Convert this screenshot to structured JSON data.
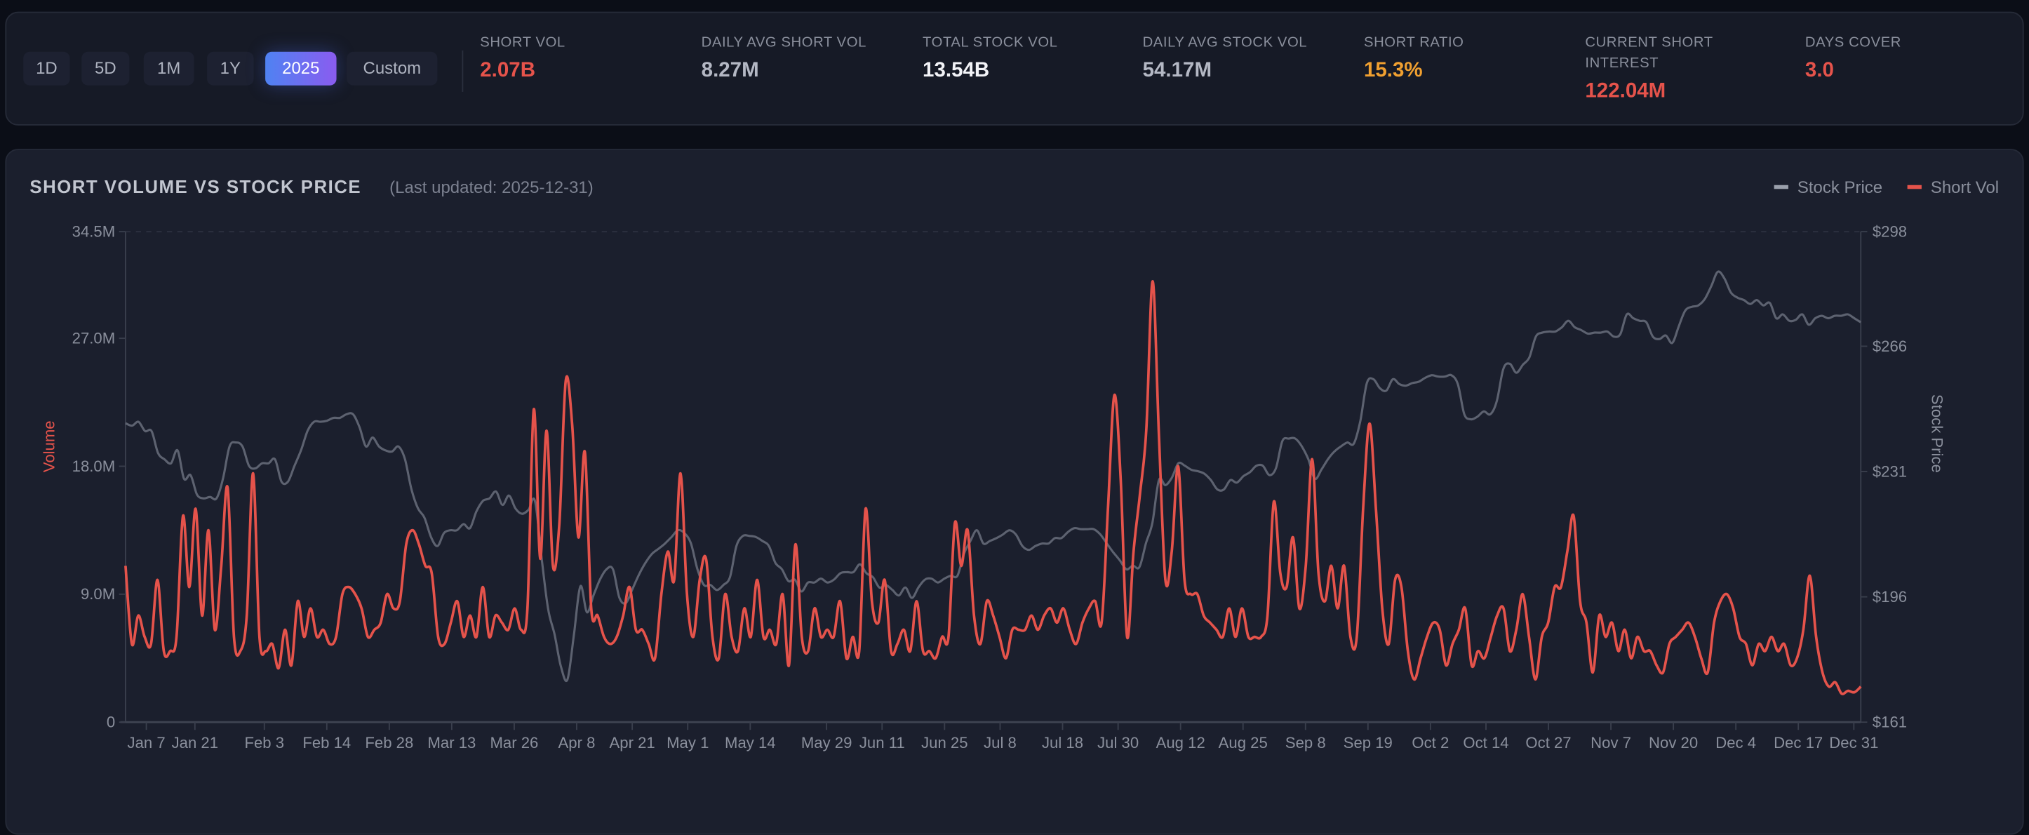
{
  "ranges": [
    {
      "label": "1D",
      "active": false
    },
    {
      "label": "5D",
      "active": false
    },
    {
      "label": "1M",
      "active": false
    },
    {
      "label": "1Y",
      "active": false
    },
    {
      "label": "2025",
      "active": true
    },
    {
      "label": "Custom",
      "active": false
    }
  ],
  "stats": [
    {
      "label": "Short Vol",
      "value": "2.07B",
      "color": "#e5534b"
    },
    {
      "label": "Daily Avg Short Vol",
      "value": "8.27M",
      "color": "#b4b8c4"
    },
    {
      "label": "Total Stock Vol",
      "value": "13.54B",
      "color": "#f2f3f7"
    },
    {
      "label": "Daily Avg Stock Vol",
      "value": "54.17M",
      "color": "#b4b8c4"
    },
    {
      "label": "Short Ratio",
      "value": "15.3%",
      "color": "#f0a030"
    },
    {
      "label": "Current Short Interest",
      "value": "122.04M",
      "color": "#e5534b"
    },
    {
      "label": "Days Cover",
      "value": "3.0",
      "color": "#e5534b"
    }
  ],
  "chart_header": {
    "title": "SHORT VOLUME VS STOCK PRICE",
    "subtitle": "(Last updated: 2025-12-31)"
  },
  "chart_data": {
    "type": "line",
    "title": "SHORT VOLUME VS STOCK PRICE",
    "ylabel": "Volume",
    "y2label": "Stock Price",
    "ylim": [
      0,
      34.5
    ],
    "y2lim": [
      161,
      298
    ],
    "xlim_trading_days": [
      0,
      250
    ],
    "yticks": [
      {
        "v": 34.5,
        "label": "34.5M"
      },
      {
        "v": 27,
        "label": "27.0M"
      },
      {
        "v": 18,
        "label": "18.0M"
      },
      {
        "v": 9,
        "label": "9.0M"
      },
      {
        "v": 0,
        "label": "0"
      }
    ],
    "y2ticks": [
      {
        "v": 298,
        "label": "$298"
      },
      {
        "v": 266,
        "label": "$266"
      },
      {
        "v": 231,
        "label": "$231"
      },
      {
        "v": 196,
        "label": "$196"
      },
      {
        "v": 161,
        "label": "$161"
      }
    ],
    "xticks": [
      {
        "day": 3,
        "label": "Jan 7"
      },
      {
        "day": 10,
        "label": "Jan 21"
      },
      {
        "day": 20,
        "label": "Feb 3"
      },
      {
        "day": 29,
        "label": "Feb 14"
      },
      {
        "day": 38,
        "label": "Feb 28"
      },
      {
        "day": 47,
        "label": "Mar 13"
      },
      {
        "day": 56,
        "label": "Mar 26"
      },
      {
        "day": 65,
        "label": "Apr 8"
      },
      {
        "day": 73,
        "label": "Apr 21"
      },
      {
        "day": 81,
        "label": "May 1"
      },
      {
        "day": 90,
        "label": "May 14"
      },
      {
        "day": 101,
        "label": "May 29"
      },
      {
        "day": 109,
        "label": "Jun 11"
      },
      {
        "day": 118,
        "label": "Jun 25"
      },
      {
        "day": 126,
        "label": "Jul 8"
      },
      {
        "day": 135,
        "label": "Jul 18"
      },
      {
        "day": 143,
        "label": "Jul 30"
      },
      {
        "day": 152,
        "label": "Aug 12"
      },
      {
        "day": 161,
        "label": "Aug 25"
      },
      {
        "day": 170,
        "label": "Sep 8"
      },
      {
        "day": 179,
        "label": "Sep 19"
      },
      {
        "day": 188,
        "label": "Oct 2"
      },
      {
        "day": 196,
        "label": "Oct 14"
      },
      {
        "day": 205,
        "label": "Oct 27"
      },
      {
        "day": 214,
        "label": "Nov 7"
      },
      {
        "day": 223,
        "label": "Nov 20"
      },
      {
        "day": 232,
        "label": "Dec 4"
      },
      {
        "day": 241,
        "label": "Dec 17"
      },
      {
        "day": 249,
        "label": "Dec 31"
      }
    ],
    "legend_position": "top-right",
    "series": [
      {
        "name": "Stock Price",
        "axis": "right",
        "color": "#5d6270",
        "legend_color": "#9a9fab",
        "values": [
          244.5,
          243.8,
          244.9,
          242.3,
          242.3,
          236.2,
          234.4,
          233.3,
          236.9,
          229,
          230,
          224.6,
          223.5,
          223.9,
          223.5,
          229,
          238,
          239.1,
          238,
          232.6,
          231.9,
          233.3,
          233.3,
          234.4,
          228.2,
          228.2,
          232.6,
          236.9,
          242.3,
          244.9,
          244.9,
          245.2,
          246,
          246,
          247,
          247,
          243.4,
          238,
          240.5,
          238,
          236.9,
          236.6,
          238,
          234.4,
          226,
          220.7,
          218.1,
          212.7,
          210.2,
          213.8,
          214.6,
          214.6,
          216.3,
          215.2,
          219.9,
          222.8,
          223.5,
          225.4,
          221.7,
          224.3,
          220.7,
          219.2,
          220.3,
          222.8,
          207.3,
          192.8,
          185.6,
          176.5,
          172.9,
          185.6,
          199,
          191.7,
          196.4,
          200.8,
          203.7,
          203.7,
          195.7,
          194.3,
          198.2,
          202.2,
          205.5,
          208,
          209.4,
          210.9,
          212.7,
          214.6,
          213.8,
          210.9,
          203.7,
          199.3,
          199.3,
          197.9,
          199.3,
          201.5,
          210.2,
          213,
          213,
          212.7,
          211.6,
          210.2,
          205.5,
          203.7,
          200.4,
          200.8,
          197.5,
          200,
          200,
          201.1,
          200,
          200.8,
          202.6,
          202.9,
          202.9,
          205.1,
          202.6,
          201.5,
          198.6,
          199.3,
          197.9,
          196.4,
          198.6,
          195.7,
          198.6,
          200.8,
          201.1,
          200,
          201.1,
          201.9,
          201.9,
          208,
          211.6,
          214.6,
          210.9,
          211.6,
          212.4,
          213.4,
          214.6,
          213.4,
          210.2,
          209.1,
          210.2,
          210.9,
          210.9,
          212.4,
          212.4,
          214.1,
          215.2,
          214.9,
          214.9,
          214.9,
          213.4,
          210.9,
          208.4,
          206.2,
          203.7,
          204.7,
          204.3,
          210.9,
          216.7,
          228.6,
          227.2,
          229.3,
          233.3,
          232.6,
          231.5,
          231.1,
          230.4,
          228.6,
          226,
          226,
          228.6,
          227.9,
          229.7,
          230.8,
          232.6,
          232.6,
          230,
          231.9,
          239.5,
          240.2,
          240.2,
          238,
          234.4,
          229,
          231.5,
          234.4,
          236.6,
          238,
          239.1,
          238.8,
          245.2,
          255.7,
          256.8,
          254.3,
          253.6,
          256.8,
          255.4,
          255,
          255.7,
          256.1,
          257.2,
          257.9,
          257.5,
          257.5,
          257.9,
          255.4,
          247,
          245.6,
          246.3,
          247.8,
          247,
          250.7,
          259.7,
          261.1,
          258.6,
          260.8,
          262.9,
          268.7,
          269.8,
          270.1,
          270.1,
          271.3,
          273.1,
          271.3,
          270.5,
          269.5,
          269.8,
          269.8,
          270.1,
          268.7,
          269.4,
          274.9,
          273.8,
          273.1,
          272.7,
          268.7,
          268,
          269,
          266.9,
          271.6,
          276,
          277,
          277.4,
          279.2,
          282.8,
          286.8,
          285,
          281,
          279.6,
          278.9,
          277.8,
          278.9,
          277.4,
          278.1,
          273.8,
          274.9,
          273.1,
          273.4,
          274.9,
          272,
          273.8,
          274.5,
          273.8,
          274.5,
          274.5,
          274.9,
          273.8,
          272.7
        ]
      },
      {
        "name": "Short Vol",
        "axis": "left",
        "color": "#e5534b",
        "legend_color": "#e5534b",
        "values": [
          11,
          5.5,
          7.5,
          6,
          5.5,
          10,
          5,
          5,
          6,
          14.5,
          9.5,
          15,
          7.5,
          13.5,
          6.5,
          11,
          16.5,
          6,
          5,
          7.5,
          17.5,
          6,
          5,
          5.5,
          3.8,
          6.5,
          4,
          8.5,
          6,
          8,
          6,
          6.5,
          5.5,
          6,
          9,
          9.5,
          9,
          8,
          6,
          6.5,
          7,
          9,
          8,
          8.5,
          12.5,
          13.5,
          12.5,
          11,
          10.5,
          6,
          5.5,
          7,
          8.5,
          6,
          7.5,
          6,
          9.5,
          6,
          7.5,
          7,
          6.5,
          8,
          6.5,
          8,
          22,
          11.5,
          20.5,
          11,
          14,
          24,
          21,
          13,
          19,
          8,
          7.5,
          6,
          5.5,
          6,
          7.5,
          9.5,
          6.5,
          6.5,
          5.5,
          4.5,
          9,
          12,
          10,
          17.5,
          9,
          6,
          10,
          11.5,
          6,
          4.5,
          9,
          6,
          5,
          8,
          6,
          10,
          6,
          6.5,
          5.5,
          9,
          4,
          12.5,
          6,
          5,
          8,
          6,
          6.5,
          6,
          8.5,
          4.5,
          6,
          5,
          15,
          8.5,
          7,
          10,
          5,
          5.5,
          6.5,
          5,
          8.5,
          5,
          5,
          4.5,
          6,
          6,
          14,
          11,
          13.5,
          7.5,
          5.5,
          8.5,
          7.5,
          6,
          4.5,
          6.5,
          6.5,
          6.5,
          7.5,
          6.5,
          7.5,
          8,
          7,
          8,
          6.5,
          5.5,
          7,
          8,
          8.5,
          7,
          15,
          23,
          17,
          6,
          12,
          16,
          20.5,
          31,
          20,
          10,
          12,
          18,
          10,
          9,
          9,
          7.5,
          7,
          6.5,
          6,
          8,
          6,
          8,
          6,
          6,
          6,
          7.5,
          15.5,
          10.5,
          9.5,
          13,
          8,
          11,
          18.5,
          10.5,
          8.5,
          11,
          8,
          11,
          6,
          6,
          15,
          21,
          15,
          8,
          5.5,
          10,
          9.5,
          5,
          3,
          4.5,
          6,
          7,
          6.5,
          4,
          5.5,
          6.5,
          8,
          4,
          5,
          4.5,
          6,
          7.5,
          8,
          5,
          6.5,
          9,
          6,
          3,
          6,
          7,
          9.5,
          9.5,
          12,
          14.5,
          8.5,
          7,
          3.5,
          7.5,
          6,
          7,
          5,
          6.5,
          4.5,
          6,
          5,
          5,
          4,
          3.5,
          5.5,
          6,
          6.5,
          7,
          6,
          4.5,
          3.5,
          7,
          8.5,
          9,
          8,
          6,
          5.5,
          4,
          5.5,
          5,
          6,
          5,
          5.5,
          4,
          4.5,
          6.5,
          10.3,
          6,
          3.5,
          2.5,
          2.8,
          2,
          2.2,
          2.1,
          2.5
        ]
      }
    ]
  }
}
